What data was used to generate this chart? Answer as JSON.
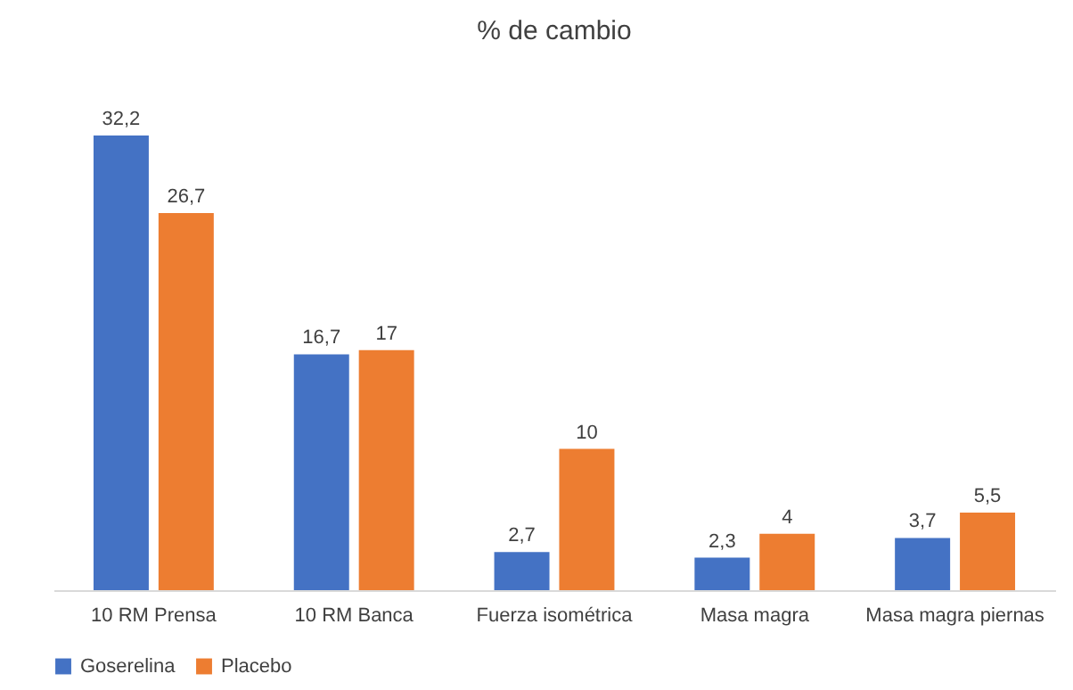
{
  "chart_data": {
    "type": "bar",
    "title": "% de cambio",
    "categories": [
      "10 RM Prensa",
      "10 RM Banca",
      "Fuerza isométrica",
      "Masa magra",
      "Masa magra piernas"
    ],
    "series": [
      {
        "name": "Goserelina",
        "color": "#4472c4",
        "values": [
          32.2,
          16.7,
          2.7,
          2.3,
          3.7
        ],
        "value_labels": [
          "32,2",
          "16,7",
          "2,7",
          "2,3",
          "3,7"
        ]
      },
      {
        "name": "Placebo",
        "color": "#ed7d31",
        "values": [
          26.7,
          17,
          10,
          4,
          5.5
        ],
        "value_labels": [
          "26,7",
          "17",
          "10",
          "4",
          "5,5"
        ]
      }
    ],
    "legend": "bottom"
  }
}
